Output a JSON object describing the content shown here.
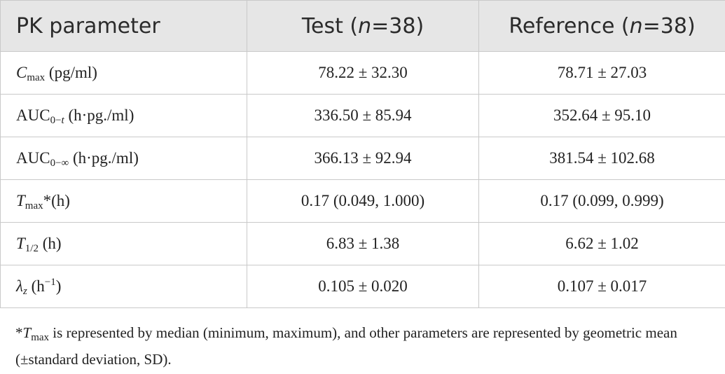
{
  "table": {
    "header": [
      [
        "PK parameter"
      ],
      [
        "Test (",
        "n",
        "=38)"
      ],
      [
        "Reference (",
        "n",
        "=38)"
      ]
    ],
    "rows": [
      [
        [
          "C",
          "max",
          " (pg/ml)"
        ],
        "78.22 ± 32.30",
        "78.71 ± 27.03"
      ],
      [
        [
          "AUC",
          "0−",
          "t",
          " (h·pg./ml)"
        ],
        "336.50 ± 85.94",
        "352.64 ± 95.10"
      ],
      [
        [
          "AUC",
          "0−∞",
          " (h·pg./ml)"
        ],
        "366.13 ± 92.94",
        "381.54 ± 102.68"
      ],
      [
        [
          "T",
          "max",
          "*(h)"
        ],
        "0.17 (0.049, 1.000)",
        "0.17 (0.099, 0.999)"
      ],
      [
        [
          "T",
          "1/2",
          " (h)"
        ],
        "6.83 ± 1.38",
        "6.62 ± 1.02"
      ],
      [
        [
          "λ",
          "z",
          " (h",
          "−1",
          ")"
        ],
        "0.105 ± 0.020",
        "0.107 ± 0.017"
      ]
    ]
  },
  "footnote": [
    "*",
    "T",
    "max",
    " is represented by median (minimum, maximum), and other parameters are represented by geometric mean (±standard deviation, SD)."
  ]
}
